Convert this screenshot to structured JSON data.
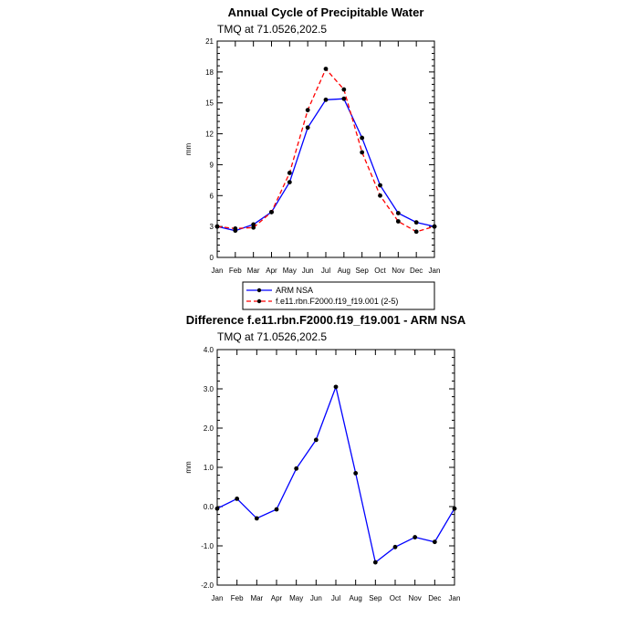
{
  "chart_data": [
    {
      "type": "line",
      "title": "Annual Cycle of Precipitable Water",
      "subtitle": "TMQ at 71.0526,202.5",
      "xlabel": "",
      "ylabel": "mm",
      "categories": [
        "Jan",
        "Feb",
        "Mar",
        "Apr",
        "May",
        "Jun",
        "Jul",
        "Aug",
        "Sep",
        "Oct",
        "Nov",
        "Dec",
        "Jan"
      ],
      "ylim": [
        0,
        21
      ],
      "yticks": [
        0,
        3,
        6,
        9,
        12,
        15,
        18,
        21
      ],
      "ytick_labels": [
        "0",
        "3",
        "6",
        "9",
        "12",
        "15",
        "18",
        "21"
      ],
      "series": [
        {
          "name": "ARM NSA",
          "color": "#0000ff",
          "dash": "solid",
          "values": [
            3.0,
            2.6,
            3.2,
            4.4,
            7.3,
            12.6,
            15.3,
            15.4,
            11.6,
            7.0,
            4.3,
            3.4,
            3.0
          ]
        },
        {
          "name": "f.e11.rbn.F2000.f19_f19.001 (2-5)",
          "color": "#ff0000",
          "dash": "dashed",
          "values": [
            3.0,
            2.8,
            2.9,
            4.4,
            8.2,
            14.3,
            18.3,
            16.3,
            10.2,
            6.0,
            3.5,
            2.5,
            3.0
          ]
        }
      ],
      "legend": "below"
    },
    {
      "type": "line",
      "title": "Difference f.e11.rbn.F2000.f19_f19.001 - ARM NSA",
      "subtitle": "TMQ at 71.0526,202.5",
      "xlabel": "",
      "ylabel": "mm",
      "categories": [
        "Jan",
        "Feb",
        "Mar",
        "Apr",
        "May",
        "Jun",
        "Jul",
        "Aug",
        "Sep",
        "Oct",
        "Nov",
        "Dec",
        "Jan"
      ],
      "ylim": [
        -2.0,
        4.0
      ],
      "yticks": [
        -2.0,
        -1.0,
        0.0,
        1.0,
        2.0,
        3.0,
        4.0
      ],
      "ytick_labels": [
        "-2.0",
        "-1.0",
        "0.0",
        "1.0",
        "2.0",
        "3.0",
        "4.0"
      ],
      "series": [
        {
          "name": "Difference",
          "color": "#0000ff",
          "dash": "solid",
          "values": [
            -0.05,
            0.2,
            -0.3,
            -0.07,
            0.97,
            1.7,
            3.05,
            0.85,
            -1.42,
            -1.03,
            -0.78,
            -0.9,
            -0.05
          ]
        }
      ]
    }
  ]
}
